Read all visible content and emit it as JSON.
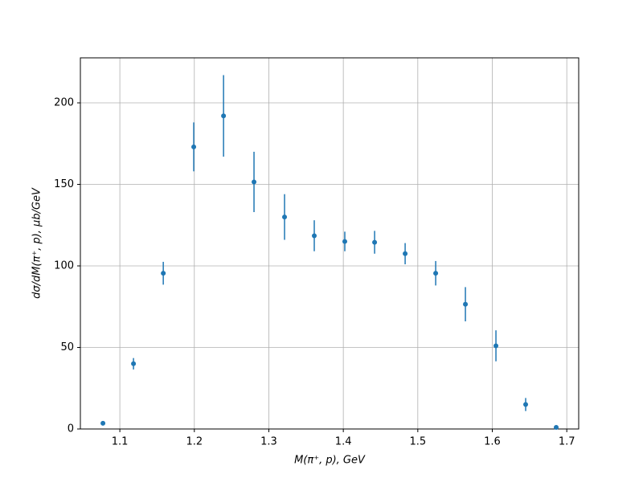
{
  "chart_data": {
    "type": "errorbar",
    "xlabel": "M(π⁺, p), GeV",
    "ylabel": "dσ/dM(π⁺, p), μb/GeV",
    "x": [
      1.0773,
      1.1183,
      1.1583,
      1.1992,
      1.2392,
      1.2801,
      1.3211,
      1.361,
      1.402,
      1.442,
      1.483,
      1.524,
      1.5639,
      1.6049,
      1.6448,
      1.6858
    ],
    "values": [
      3.5,
      40,
      95.5,
      173,
      192,
      151.5,
      130,
      118.5,
      115,
      114.5,
      107.5,
      95.5,
      76.5,
      51,
      15,
      1
    ],
    "errors": [
      0.5,
      3.5,
      7,
      15,
      25,
      18.5,
      14,
      9.5,
      6,
      7,
      6.5,
      7.5,
      10.5,
      9.5,
      4,
      0.5
    ],
    "color": "#1f77b4",
    "xlim": [
      1.047,
      1.716
    ],
    "ylim": [
      0,
      227.6
    ],
    "xticks": [
      1.1,
      1.2,
      1.3,
      1.4,
      1.5,
      1.6,
      1.7
    ],
    "yticks": [
      0,
      50,
      100,
      150,
      200
    ],
    "grid": true
  }
}
